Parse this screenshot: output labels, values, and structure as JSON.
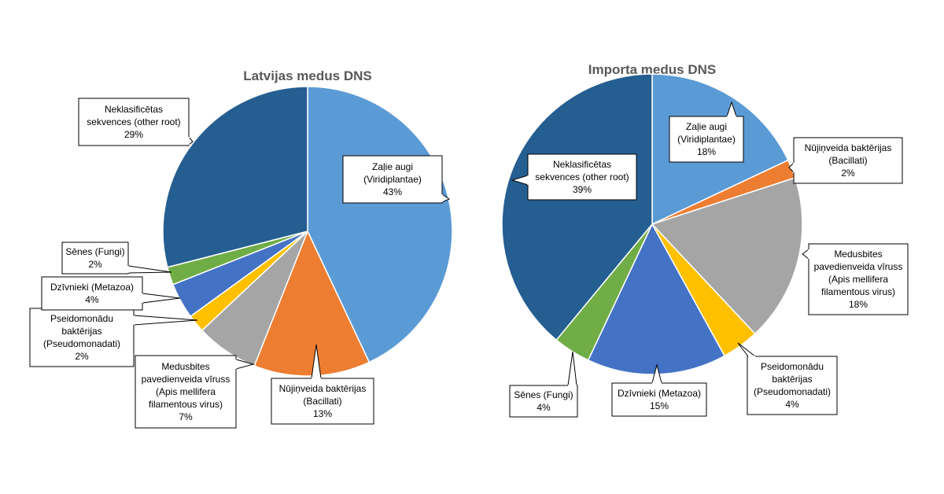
{
  "colors": {
    "green_plants": "#5B9BD5",
    "bacillati": "#ED7D31",
    "bee_virus": "#A5A5A5",
    "pseudomonadati": "#FFC000",
    "metazoa": "#4472C4",
    "fungi": "#70AD47",
    "unclassified": "#255E91"
  },
  "chart_data": [
    {
      "type": "pie",
      "title": "Latvijas medus DNS",
      "slices": [
        {
          "key": "green_plants",
          "value": 43,
          "label_lines": [
            "Zaļie augi",
            "(Viridiplantae)",
            "43%"
          ]
        },
        {
          "key": "bacillati",
          "value": 13,
          "label_lines": [
            "Nūjiņveida baktērijas",
            "(Bacillati)",
            "13%"
          ]
        },
        {
          "key": "bee_virus",
          "value": 7,
          "label_lines": [
            "Medusbites",
            "pavedienveida vīruss",
            "(Apis mellifera",
            "filamentous virus)",
            "7%"
          ]
        },
        {
          "key": "pseudomonadati",
          "value": 2,
          "label_lines": [
            "Pseidomonādu",
            "baktērijas",
            "(Pseudomonadati)",
            "2%"
          ]
        },
        {
          "key": "metazoa",
          "value": 4,
          "label_lines": [
            "Dzīvnieki (Metazoa)",
            "4%"
          ]
        },
        {
          "key": "fungi",
          "value": 2,
          "label_lines": [
            "Sēnes (Fungi)",
            "2%"
          ]
        },
        {
          "key": "unclassified",
          "value": 29,
          "label_lines": [
            "Neklasificētas",
            "sekvences (other root)",
            "29%"
          ]
        }
      ]
    },
    {
      "type": "pie",
      "title": "Importa medus DNS",
      "slices": [
        {
          "key": "green_plants",
          "value": 18,
          "label_lines": [
            "Zaļie augi",
            "(Viridiplantae)",
            "18%"
          ]
        },
        {
          "key": "bacillati",
          "value": 2,
          "label_lines": [
            "Nūjiņveida baktērijas",
            "(Bacillati)",
            "2%"
          ]
        },
        {
          "key": "bee_virus",
          "value": 18,
          "label_lines": [
            "Medusbites",
            "pavedienveida vīruss",
            "(Apis mellifera",
            "filamentous virus)",
            "18%"
          ]
        },
        {
          "key": "pseudomonadati",
          "value": 4,
          "label_lines": [
            "Pseidomonādu",
            "baktērijas",
            "(Pseudomonadati)",
            "4%"
          ]
        },
        {
          "key": "metazoa",
          "value": 15,
          "label_lines": [
            "Dzīvnieki (Metazoa)",
            "15%"
          ]
        },
        {
          "key": "fungi",
          "value": 4,
          "label_lines": [
            "Sēnes (Fungi)",
            "4%"
          ]
        },
        {
          "key": "unclassified",
          "value": 39,
          "label_lines": [
            "Neklasificētas",
            "sekvences (other root)",
            "39%"
          ]
        }
      ]
    }
  ]
}
